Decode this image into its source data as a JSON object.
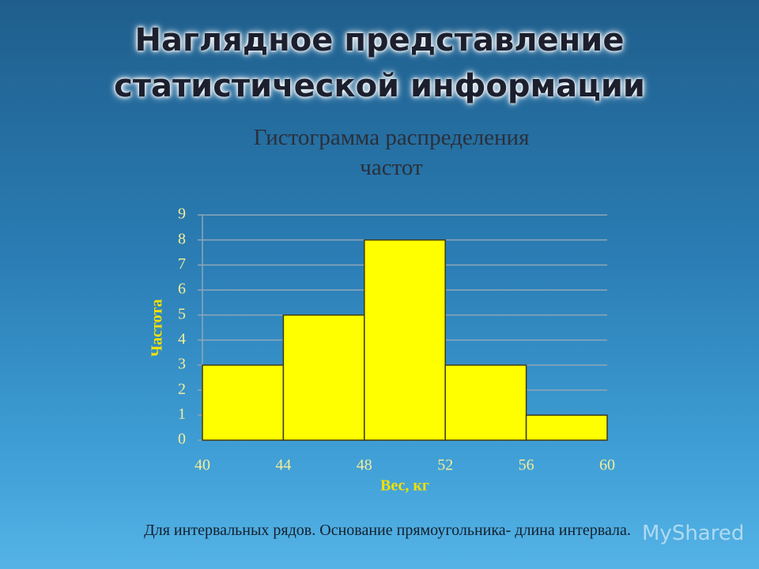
{
  "slide_title": [
    "Наглядное представление",
    "статистической информации"
  ],
  "footer": "Для интервальных рядов. Основание прямоугольника- длина интервала.",
  "watermark": "MyShared",
  "chart_data": {
    "type": "histogram",
    "title": [
      "Гистограмма распределения",
      "частот"
    ],
    "x_label": "Вес, кг",
    "y_label": "Частота",
    "bins": [
      40,
      44,
      48,
      52,
      56,
      60
    ],
    "values": [
      3,
      5,
      8,
      3,
      1
    ],
    "color": "#ffff00",
    "xlim": [
      40,
      60
    ],
    "xticks": [
      40,
      44,
      48,
      52,
      56,
      60
    ],
    "ylim": [
      0,
      9
    ],
    "yticks": [
      0,
      1,
      2,
      3,
      4,
      5,
      6,
      7,
      8,
      9
    ],
    "grid": true
  }
}
